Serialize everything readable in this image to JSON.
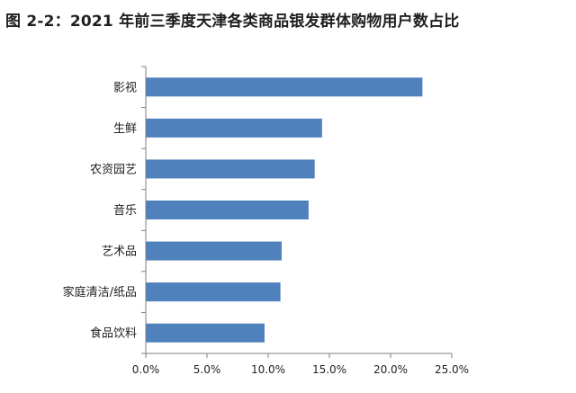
{
  "title": "图 2-2：2021 年前三季度天津各类商品银发群体购物用户数占比",
  "chart_data": {
    "type": "bar",
    "orientation": "horizontal",
    "title": "图 2-2：2021 年前三季度天津各类商品银发群体购物用户数占比",
    "categories": [
      "影视",
      "生鲜",
      "农资园艺",
      "音乐",
      "艺术品",
      "家庭清洁/纸品",
      "食品饮料"
    ],
    "values": [
      22.6,
      14.4,
      13.8,
      13.3,
      11.1,
      11.0,
      9.7
    ],
    "xlim": [
      0,
      25
    ],
    "x_ticks": [
      "0.0%",
      "5.0%",
      "10.0%",
      "15.0%",
      "20.0%",
      "25.0%"
    ],
    "bar_color": "#4F81BD",
    "grid": false,
    "legend": "none"
  }
}
